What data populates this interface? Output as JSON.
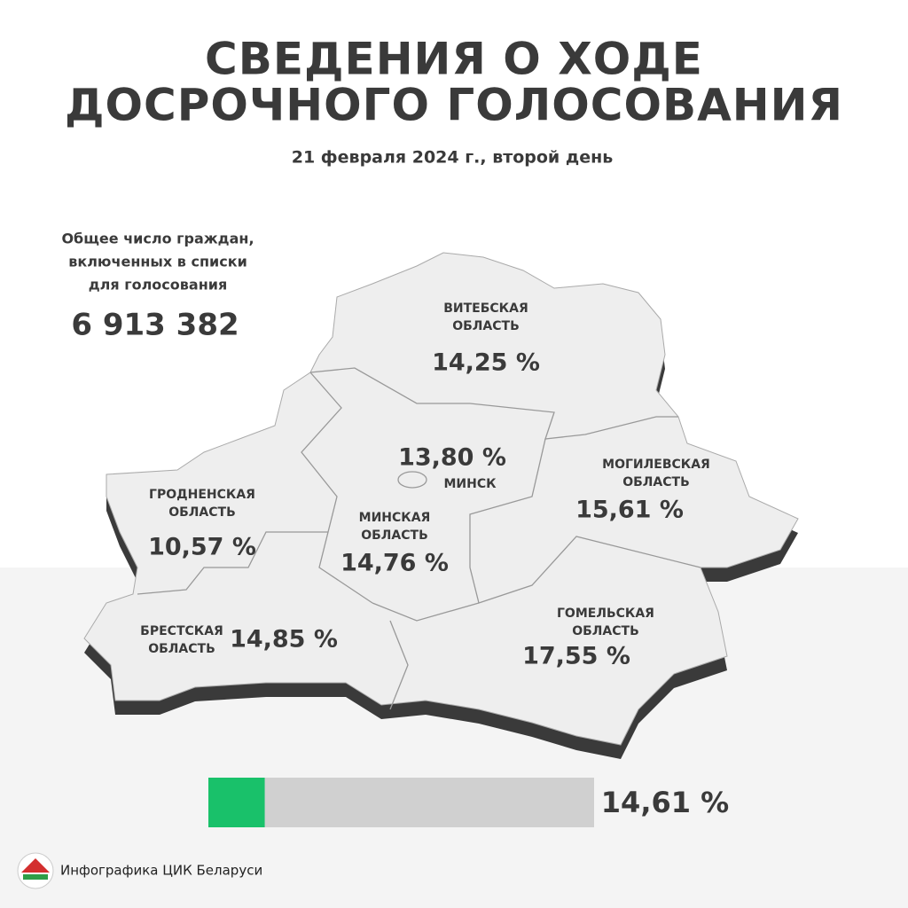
{
  "header": {
    "title": [
      "СВЕДЕНИЯ О ХОДЕ",
      "ДОСРОЧНОГО ГОЛОСОВАНИЯ"
    ],
    "subtitle": "21 февраля 2024 г., второй день"
  },
  "voters": {
    "caption": [
      "Общее число граждан,",
      "включенных в списки",
      "для голосования"
    ],
    "count": "6 913 382"
  },
  "regions": [
    {
      "name": [
        "ВИТЕБСКАЯ",
        "ОБЛАСТЬ"
      ],
      "value": "14,25 %"
    },
    {
      "name": [
        "МИНСК"
      ],
      "value": "13,80 %"
    },
    {
      "name": [
        "МОГИЛЕВСКАЯ",
        "ОБЛАСТЬ"
      ],
      "value": "15,61 %"
    },
    {
      "name": [
        "ГРОДНЕНСКАЯ",
        "ОБЛАСТЬ"
      ],
      "value": "10,57 %"
    },
    {
      "name": [
        "МИНСКАЯ",
        "ОБЛАСТЬ"
      ],
      "value": "14,76 %"
    },
    {
      "name": [
        "БРЕСТСКАЯ",
        "ОБЛАСТЬ"
      ],
      "value": "14,85 %"
    },
    {
      "name": [
        "ГОМЕЛЬСКАЯ",
        "ОБЛАСТЬ"
      ],
      "value": "17,55 %"
    }
  ],
  "total": {
    "value": 14.61,
    "label": "14,61 %"
  },
  "footer": {
    "credit": "Инфографика ЦИК Беларуси"
  }
}
